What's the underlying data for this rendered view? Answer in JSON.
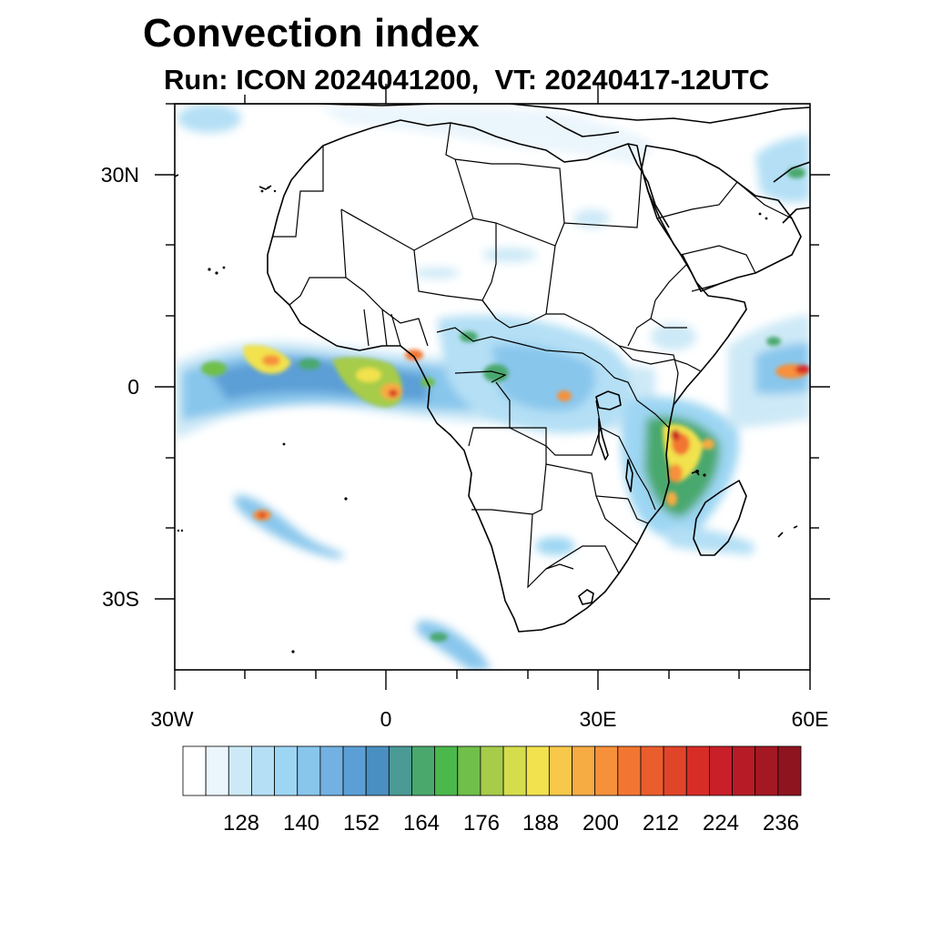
{
  "title": "Convection index",
  "subtitle": "Run: ICON 2024041200,  VT: 20240417-12UTC",
  "map": {
    "lon_range": [
      -30,
      60
    ],
    "lat_range": [
      -40,
      40
    ],
    "x_tick_labels": [
      "30W",
      "0",
      "30E",
      "60E"
    ],
    "y_tick_labels": [
      "30N",
      "0",
      "30S"
    ],
    "coastline_color": "#000000"
  },
  "colorbar": {
    "labels": [
      "128",
      "140",
      "152",
      "164",
      "176",
      "188",
      "200",
      "212",
      "224",
      "236"
    ],
    "colors": [
      "#ffffff",
      "#eaf5fc",
      "#cde9f7",
      "#b4dff5",
      "#9dd6f3",
      "#88c6ec",
      "#72b1e1",
      "#5b9fd6",
      "#4a8fc1",
      "#4b9a95",
      "#4aa86d",
      "#4bb84b",
      "#6fbf4a",
      "#a6cc4a",
      "#d6dd4c",
      "#f2e24e",
      "#f8c84a",
      "#f7ab43",
      "#f6903b",
      "#f27632",
      "#ea5d2c",
      "#e04529",
      "#d82c27",
      "#c81f28",
      "#b71b26",
      "#a41823",
      "#8e1520"
    ]
  }
}
